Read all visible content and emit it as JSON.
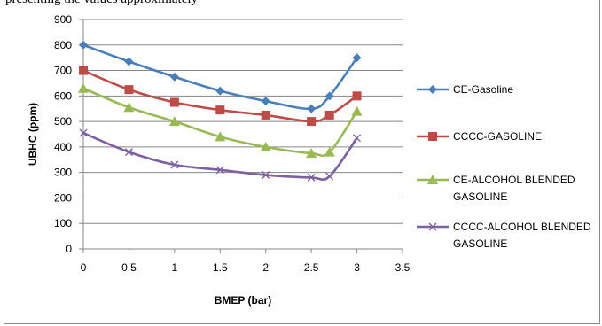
{
  "page": {
    "top_text": "presenting the values approximately"
  },
  "chart_data": {
    "type": "line",
    "title": "",
    "xlabel": "BMEP (bar)",
    "ylabel": "UBHC (ppm)",
    "xlim": [
      0,
      3.5
    ],
    "ylim": [
      0,
      900
    ],
    "x_ticks": [
      0,
      0.5,
      1,
      1.5,
      2,
      2.5,
      3,
      3.5
    ],
    "y_ticks": [
      0,
      100,
      200,
      300,
      400,
      500,
      600,
      700,
      800,
      900
    ],
    "grid": {
      "horizontal": true,
      "vertical": false
    },
    "legend_position": "right",
    "series": [
      {
        "name": "CE-Gasoline",
        "color": "#4a7ebb",
        "marker": "diamond",
        "x": [
          0,
          0.5,
          1,
          1.5,
          2,
          2.5,
          2.7,
          3
        ],
        "y": [
          800,
          735,
          675,
          620,
          580,
          550,
          600,
          750
        ]
      },
      {
        "name": "CCCC-GASOLINE",
        "color": "#be4b48",
        "marker": "square",
        "x": [
          0,
          0.5,
          1,
          1.5,
          2,
          2.5,
          2.7,
          3
        ],
        "y": [
          700,
          625,
          575,
          545,
          525,
          500,
          525,
          600
        ]
      },
      {
        "name": "CE-ALCOHOL BLENDED GASOLINE",
        "color": "#98b954",
        "marker": "triangle",
        "x": [
          0,
          0.5,
          1,
          1.5,
          2,
          2.5,
          2.7,
          3
        ],
        "y": [
          630,
          555,
          500,
          440,
          400,
          375,
          380,
          540
        ]
      },
      {
        "name": "CCCC-ALCOHOL BLENDED GASOLINE",
        "color": "#7d60a0",
        "marker": "x",
        "x": [
          0,
          0.5,
          1,
          1.5,
          2,
          2.5,
          2.7,
          3
        ],
        "y": [
          455,
          380,
          330,
          310,
          290,
          280,
          285,
          435
        ]
      }
    ]
  }
}
